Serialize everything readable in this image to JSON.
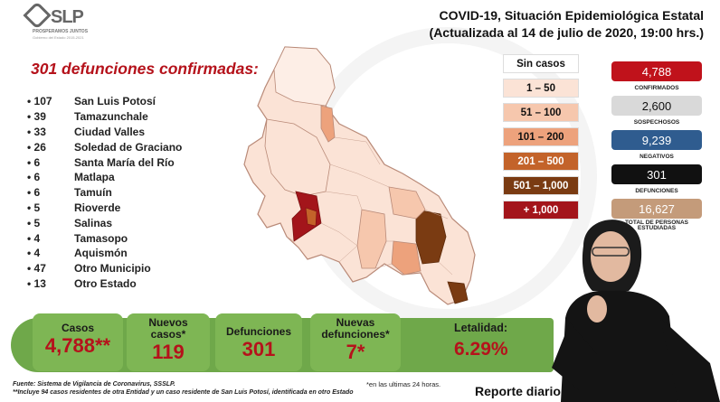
{
  "logo": {
    "text": "SLP",
    "tagline": "PROSPERAMOS JUNTOS",
    "subtag": "Gobierno del Estado 2015-2021"
  },
  "header": {
    "line1": "COVID-19, Situación Epidemiológica Estatal",
    "line2": "(Actualizada al 14 de julio de 2020, 19:00 hrs.)"
  },
  "deaths_title": "301 defunciones confirmadas:",
  "municipalities": [
    {
      "num": "• 107",
      "name": "San Luis Potosí"
    },
    {
      "num": "• 39",
      "name": "Tamazunchale"
    },
    {
      "num": "• 33",
      "name": "Ciudad Valles"
    },
    {
      "num": "• 26",
      "name": "Soledad de Graciano"
    },
    {
      "num": "• 6",
      "name": "Santa María del Río"
    },
    {
      "num": "• 6",
      "name": "Matlapa"
    },
    {
      "num": "• 6",
      "name": "Tamuín"
    },
    {
      "num": "• 5",
      "name": "Rioverde"
    },
    {
      "num": "• 5",
      "name": "Salinas"
    },
    {
      "num": "• 4",
      "name": "Tamasopo"
    },
    {
      "num": "• 4",
      "name": "Aquismón"
    },
    {
      "num": "• 47",
      "name": "Otro Municipio"
    },
    {
      "num": "• 13",
      "name": "Otro Estado"
    }
  ],
  "legend": [
    {
      "label": "Sin casos",
      "color": "#ffffff",
      "text": "#111111"
    },
    {
      "label": "1 – 50",
      "color": "#fbe3d6",
      "text": "#111111"
    },
    {
      "label": "51 – 100",
      "color": "#f6c7ad",
      "text": "#111111"
    },
    {
      "label": "101 – 200",
      "color": "#eda27c",
      "text": "#111111"
    },
    {
      "label": "201 – 500",
      "color": "#c3632a",
      "text": "#ffffff"
    },
    {
      "label": "501 – 1,000",
      "color": "#7a3b12",
      "text": "#ffffff"
    },
    {
      "label": "+ 1,000",
      "color": "#a3151b",
      "text": "#ffffff"
    }
  ],
  "stats": [
    {
      "value": "4,788",
      "label": "CONFIRMADOS",
      "color": "#c0121b",
      "text": "#ffffff"
    },
    {
      "value": "2,600",
      "label": "SOSPECHOSOS",
      "color": "#d9d9d9",
      "text": "#111111"
    },
    {
      "value": "9,239",
      "label": "NEGATIVOS",
      "color": "#2f5c8f",
      "text": "#ffffff"
    },
    {
      "value": "301",
      "label": "DEFUNCIONES",
      "color": "#111111",
      "text": "#ffffff"
    },
    {
      "value": "16,627",
      "label": "TOTAL DE PERSONAS ESTUDIADAS",
      "color": "#c49b7a",
      "text": "#ffffff"
    }
  ],
  "bottom": {
    "casos_label": "Casos",
    "casos_value": "4,788**",
    "nuevos_casos_label": "Nuevos casos*",
    "nuevos_casos_value": "119",
    "defunciones_label": "Defunciones",
    "defunciones_value": "301",
    "nuevas_def_label": "Nuevas defunciones*",
    "nuevas_def_value": "7*",
    "letalidad_label": "Letalidad:",
    "letalidad_value": "6.29%"
  },
  "footnotes": {
    "source": "Fuente: Sistema de Vigilancia de Coronavirus, SSSLP.",
    "note": "**Incluye 94 casos residentes de otra Entidad y un caso residente de San Luis Potosí, identificada en otro Estado",
    "last24": "*en las ultimas 24 horas.",
    "report": "Reporte diario"
  },
  "icons": {
    "logo": "slp-logo-icon",
    "map": "state-map",
    "interpreter": "sign-language-interpreter"
  }
}
